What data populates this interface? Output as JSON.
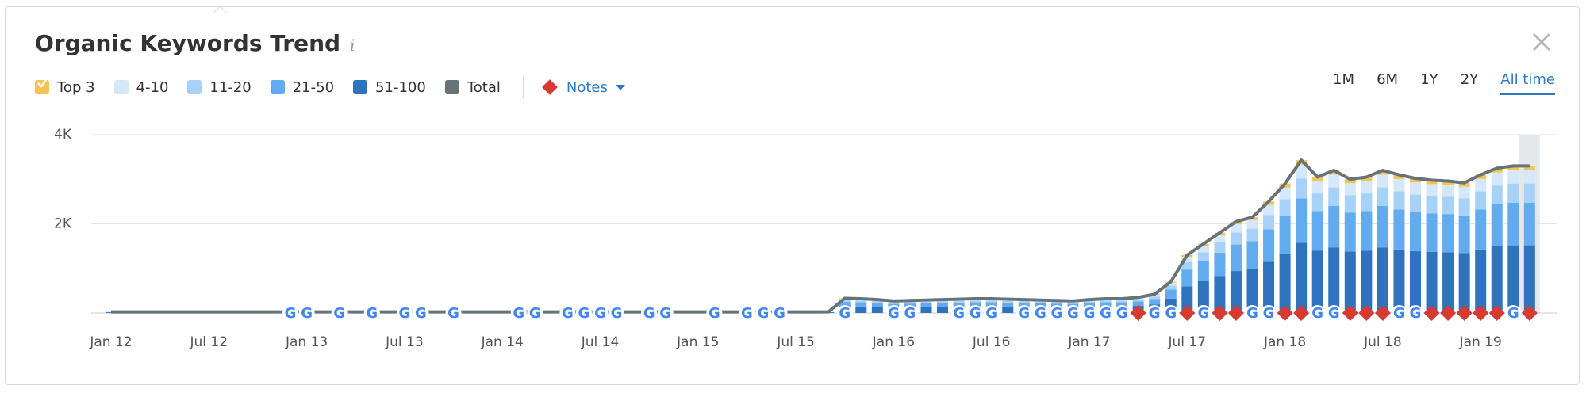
{
  "chart_data": {
    "type": "bar",
    "title": "Organic Keywords Trend",
    "info_icon": "i",
    "notes": {
      "label": "Notes",
      "color": "#d73a32",
      "x": [
        "2017-04",
        "2017-07",
        "2017-09",
        "2017-10",
        "2018-01",
        "2018-02",
        "2018-05",
        "2018-06",
        "2018-07",
        "2018-10",
        "2018-11",
        "2018-12",
        "2019-01",
        "2019-02",
        "2019-04"
      ]
    },
    "google_updates": {
      "icon": "G",
      "color": "#4285f4",
      "x": [
        "2012-12",
        "2013-01",
        "2013-03",
        "2013-05",
        "2013-07",
        "2013-08",
        "2013-10",
        "2014-02",
        "2014-03",
        "2014-05",
        "2014-06",
        "2014-07",
        "2014-08",
        "2014-10",
        "2014-11",
        "2015-02",
        "2015-04",
        "2015-05",
        "2015-06",
        "2015-10",
        "2016-01",
        "2016-02",
        "2016-05",
        "2016-06",
        "2016-07",
        "2016-09",
        "2016-10",
        "2016-11",
        "2016-12",
        "2017-01",
        "2017-02",
        "2017-03",
        "2017-05",
        "2017-06",
        "2017-08",
        "2017-11",
        "2017-12",
        "2018-03",
        "2018-04",
        "2018-08",
        "2018-09",
        "2019-03"
      ]
    },
    "time_ranges": [
      "1M",
      "6M",
      "1Y",
      "2Y",
      "All time"
    ],
    "active_range_index": 4,
    "x": [
      "2012-01",
      "2012-02",
      "2012-03",
      "2012-04",
      "2012-05",
      "2012-06",
      "2012-07",
      "2012-08",
      "2012-09",
      "2012-10",
      "2012-11",
      "2012-12",
      "2013-01",
      "2013-02",
      "2013-03",
      "2013-04",
      "2013-05",
      "2013-06",
      "2013-07",
      "2013-08",
      "2013-09",
      "2013-10",
      "2013-11",
      "2013-12",
      "2014-01",
      "2014-02",
      "2014-03",
      "2014-04",
      "2014-05",
      "2014-06",
      "2014-07",
      "2014-08",
      "2014-09",
      "2014-10",
      "2014-11",
      "2014-12",
      "2015-01",
      "2015-02",
      "2015-03",
      "2015-04",
      "2015-05",
      "2015-06",
      "2015-07",
      "2015-08",
      "2015-09",
      "2015-10",
      "2015-11",
      "2015-12",
      "2016-01",
      "2016-02",
      "2016-03",
      "2016-04",
      "2016-05",
      "2016-06",
      "2016-07",
      "2016-08",
      "2016-09",
      "2016-10",
      "2016-11",
      "2016-12",
      "2017-01",
      "2017-02",
      "2017-03",
      "2017-04",
      "2017-05",
      "2017-06",
      "2017-07",
      "2017-08",
      "2017-09",
      "2017-10",
      "2017-11",
      "2017-12",
      "2018-01",
      "2018-02",
      "2018-03",
      "2018-04",
      "2018-05",
      "2018-06",
      "2018-07",
      "2018-08",
      "2018-09",
      "2018-10",
      "2018-11",
      "2018-12",
      "2019-01",
      "2019-02",
      "2019-03",
      "2019-04"
    ],
    "series": [
      {
        "name": "Top 3",
        "color": "#f3c451",
        "values": [
          0,
          0,
          0,
          0,
          0,
          0,
          0,
          0,
          0,
          0,
          0,
          0,
          0,
          0,
          0,
          0,
          0,
          0,
          0,
          0,
          0,
          0,
          0,
          0,
          0,
          0,
          0,
          0,
          0,
          0,
          0,
          0,
          0,
          0,
          0,
          0,
          0,
          0,
          0,
          0,
          0,
          0,
          0,
          0,
          0,
          10,
          10,
          9,
          8,
          8,
          9,
          9,
          9,
          10,
          10,
          9,
          9,
          9,
          8,
          8,
          9,
          10,
          10,
          11,
          13,
          21,
          39,
          47,
          54,
          62,
          65,
          75,
          87,
          103,
          92,
          96,
          90,
          92,
          96,
          93,
          91,
          89,
          89,
          88,
          93,
          98,
          99,
          99
        ]
      },
      {
        "name": "4-10",
        "color": "#d5e8fa",
        "values": [
          1,
          1,
          1,
          1,
          1,
          1,
          1,
          1,
          1,
          1,
          1,
          1,
          1,
          1,
          1,
          1,
          1,
          1,
          1,
          1,
          1,
          1,
          1,
          1,
          1,
          1,
          1,
          1,
          1,
          1,
          1,
          1,
          1,
          1,
          1,
          1,
          1,
          1,
          1,
          1,
          1,
          1,
          1,
          1,
          1,
          30,
          29,
          27,
          24,
          25,
          26,
          27,
          28,
          29,
          29,
          28,
          27,
          26,
          25,
          24,
          27,
          29,
          29,
          32,
          38,
          63,
          117,
          140,
          162,
          185,
          194,
          225,
          261,
          309,
          275,
          288,
          270,
          275,
          288,
          279,
          272,
          268,
          266,
          263,
          279,
          293,
          297,
          297
        ]
      },
      {
        "name": "11-20",
        "color": "#a8d1f7",
        "values": [
          2,
          2,
          2,
          2,
          2,
          2,
          2,
          2,
          2,
          2,
          2,
          2,
          2,
          2,
          2,
          2,
          2,
          2,
          2,
          2,
          2,
          2,
          2,
          2,
          2,
          2,
          2,
          2,
          2,
          2,
          2,
          2,
          2,
          2,
          2,
          2,
          2,
          2,
          2,
          2,
          2,
          2,
          2,
          2,
          2,
          43,
          42,
          39,
          35,
          36,
          38,
          39,
          40,
          42,
          42,
          40,
          39,
          38,
          36,
          35,
          39,
          42,
          42,
          46,
          55,
          91,
          169,
          202,
          234,
          267,
          280,
          325,
          377,
          446,
          397,
          416,
          390,
          397,
          416,
          403,
          393,
          387,
          385,
          380,
          403,
          423,
          429,
          429
        ]
      },
      {
        "name": "21-50",
        "color": "#62abee",
        "values": [
          5,
          5,
          5,
          5,
          5,
          5,
          5,
          5,
          5,
          5,
          5,
          5,
          5,
          5,
          5,
          5,
          5,
          5,
          5,
          5,
          5,
          5,
          5,
          5,
          5,
          5,
          5,
          5,
          5,
          5,
          5,
          5,
          5,
          5,
          5,
          5,
          5,
          5,
          5,
          5,
          5,
          5,
          5,
          5,
          5,
          96,
          93,
          87,
          78,
          81,
          84,
          87,
          90,
          93,
          93,
          90,
          87,
          84,
          81,
          78,
          87,
          93,
          93,
          102,
          122,
          203,
          377,
          450,
          522,
          595,
          624,
          725,
          841,
          995,
          885,
          928,
          870,
          885,
          928,
          899,
          876,
          864,
          858,
          847,
          899,
          943,
          957,
          957
        ]
      },
      {
        "name": "51-100",
        "color": "#2f72bd",
        "values": [
          17,
          17,
          17,
          17,
          17,
          17,
          17,
          17,
          17,
          17,
          17,
          17,
          17,
          17,
          17,
          17,
          17,
          17,
          17,
          17,
          17,
          17,
          17,
          17,
          17,
          17,
          17,
          17,
          17,
          17,
          17,
          17,
          17,
          17,
          17,
          17,
          17,
          17,
          17,
          17,
          17,
          17,
          17,
          17,
          17,
          151,
          146,
          138,
          125,
          130,
          133,
          138,
          143,
          146,
          146,
          143,
          138,
          133,
          130,
          125,
          138,
          146,
          146,
          159,
          192,
          322,
          598,
          711,
          828,
          941,
          987,
          1150,
          1334,
          1577,
          1401,
          1472,
          1380,
          1401,
          1472,
          1426,
          1388,
          1372,
          1362,
          1342,
          1426,
          1493,
          1518,
          1518
        ]
      },
      {
        "name": "Total",
        "type": "line",
        "color": "#66747a",
        "values": [
          25,
          25,
          25,
          25,
          25,
          25,
          25,
          25,
          25,
          25,
          25,
          25,
          25,
          25,
          25,
          25,
          25,
          25,
          25,
          25,
          25,
          25,
          25,
          25,
          25,
          25,
          25,
          25,
          25,
          25,
          25,
          25,
          25,
          25,
          25,
          25,
          25,
          25,
          25,
          25,
          25,
          25,
          25,
          25,
          25,
          330,
          320,
          300,
          270,
          280,
          290,
          300,
          310,
          320,
          320,
          310,
          300,
          290,
          280,
          270,
          300,
          320,
          320,
          350,
          420,
          700,
          1300,
          1550,
          1800,
          2050,
          2150,
          2500,
          2900,
          3430,
          3050,
          3200,
          3000,
          3050,
          3200,
          3100,
          3020,
          2980,
          2960,
          2920,
          3100,
          3250,
          3300,
          3300
        ]
      }
    ],
    "xticks": [
      {
        "value": "2012-01",
        "label": "Jan 12"
      },
      {
        "value": "2012-07",
        "label": "Jul 12"
      },
      {
        "value": "2013-01",
        "label": "Jan 13"
      },
      {
        "value": "2013-07",
        "label": "Jul 13"
      },
      {
        "value": "2014-01",
        "label": "Jan 14"
      },
      {
        "value": "2014-07",
        "label": "Jul 14"
      },
      {
        "value": "2015-01",
        "label": "Jan 15"
      },
      {
        "value": "2015-07",
        "label": "Jul 15"
      },
      {
        "value": "2016-01",
        "label": "Jan 16"
      },
      {
        "value": "2016-07",
        "label": "Jul 16"
      },
      {
        "value": "2017-01",
        "label": "Jan 17"
      },
      {
        "value": "2017-07",
        "label": "Jul 17"
      },
      {
        "value": "2018-01",
        "label": "Jan 18"
      },
      {
        "value": "2018-07",
        "label": "Jul 18"
      },
      {
        "value": "2019-01",
        "label": "Jan 19"
      }
    ],
    "ylim": [
      0,
      4000
    ],
    "yticks": [
      {
        "value": 2000,
        "label": "2K"
      },
      {
        "value": 4000,
        "label": "4K"
      }
    ],
    "grid": true
  }
}
